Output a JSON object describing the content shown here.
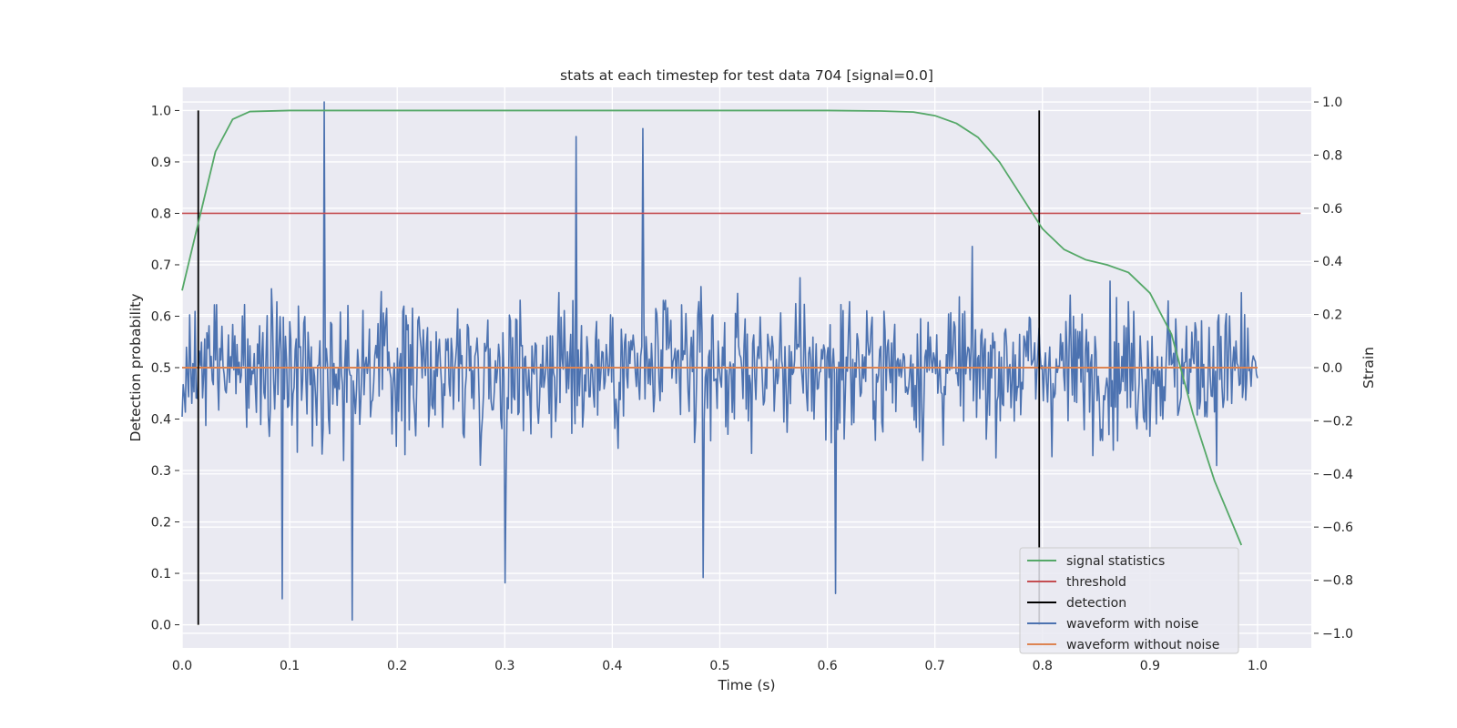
{
  "chart_data": {
    "type": "line",
    "title": "stats at each timestep for test data 704 [signal=0.0]",
    "xlabel": "Time (s)",
    "ylabel": "Detection probability",
    "y2label": "Strain",
    "xlim": [
      0.0,
      1.05
    ],
    "ylim": [
      -0.045,
      1.045
    ],
    "y2lim": [
      -1.055,
      1.055
    ],
    "x_ticks": [
      "0.0",
      "0.1",
      "0.2",
      "0.3",
      "0.4",
      "0.5",
      "0.6",
      "0.7",
      "0.8",
      "0.9",
      "1.0"
    ],
    "y_ticks": [
      "0.0",
      "0.1",
      "0.2",
      "0.3",
      "0.4",
      "0.5",
      "0.6",
      "0.7",
      "0.8",
      "0.9",
      "1.0"
    ],
    "y2_ticks": [
      "−1.0",
      "−0.8",
      "−0.6",
      "−0.4",
      "−0.2",
      "0.0",
      "0.2",
      "0.4",
      "0.6",
      "0.8",
      "1.0"
    ],
    "grid": true,
    "legend_position": "lower-right",
    "colors": {
      "signal statistics": "#55a868",
      "threshold": "#c44e52",
      "detection": "#000000",
      "waveform with noise": "#4c72b0",
      "waveform without noise": "#dd8452",
      "plot_background": "#eaeaf2",
      "grid": "#ffffff"
    },
    "series": [
      {
        "name": "signal statistics",
        "axis": "left",
        "x": [
          0.0,
          0.016,
          0.031,
          0.047,
          0.063,
          0.1,
          0.2,
          0.3,
          0.4,
          0.5,
          0.6,
          0.65,
          0.68,
          0.7,
          0.72,
          0.74,
          0.76,
          0.78,
          0.8,
          0.82,
          0.84,
          0.86,
          0.88,
          0.9,
          0.92,
          0.94,
          0.96,
          0.985
        ],
        "y": [
          0.65,
          0.79,
          0.92,
          0.983,
          0.998,
          1.0,
          1.0,
          1.0,
          1.0,
          1.0,
          1.0,
          0.999,
          0.997,
          0.99,
          0.975,
          0.948,
          0.9,
          0.835,
          0.77,
          0.73,
          0.71,
          0.7,
          0.685,
          0.645,
          0.565,
          0.41,
          0.28,
          0.155
        ]
      },
      {
        "name": "threshold",
        "axis": "left",
        "x": [
          0.0,
          1.04
        ],
        "y": [
          0.8,
          0.8
        ]
      },
      {
        "name": "detection",
        "axis": "left",
        "segments": [
          {
            "x": 0.015,
            "y": [
              0.0,
              1.0
            ]
          },
          {
            "x": 0.797,
            "y": [
              0.0,
              1.0
            ]
          }
        ]
      },
      {
        "name": "waveform with noise",
        "axis": "right",
        "x_range": [
          0.0,
          1.0
        ],
        "points": 1000,
        "y_range": [
          -0.95,
          1.0
        ],
        "peaks": [
          {
            "x": 0.132,
            "y": 1.0
          },
          {
            "x": 0.428,
            "y": 0.9
          },
          {
            "x": 0.366,
            "y": 0.87
          },
          {
            "x": 0.158,
            "y": -0.95
          },
          {
            "x": 0.608,
            "y": -0.85
          },
          {
            "x": 0.093,
            "y": -0.87
          },
          {
            "x": 0.484,
            "y": -0.79
          },
          {
            "x": 0.3,
            "y": -0.81
          }
        ]
      },
      {
        "name": "waveform without noise",
        "axis": "right",
        "x": [
          0.0,
          1.0
        ],
        "y": [
          0.0,
          0.0
        ]
      }
    ]
  }
}
